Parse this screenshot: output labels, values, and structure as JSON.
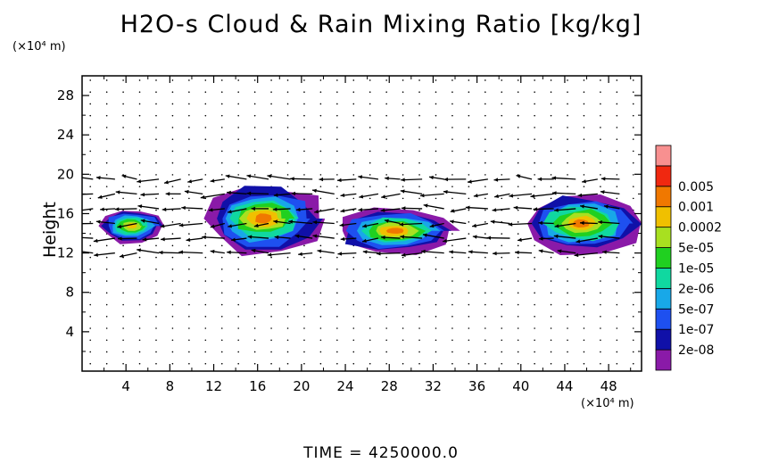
{
  "chart_data": {
    "type": "heatmap",
    "title": "H2O-s Cloud & Rain Mixing Ratio [kg/kg]",
    "ylabel": "Height",
    "x_unit": "(×10⁴ m)",
    "y_unit": "(×10⁴ m)",
    "footer": "TIME = 4250000.0",
    "xlim": [
      0,
      51
    ],
    "ylim": [
      0,
      30
    ],
    "x_ticks": [
      4,
      8,
      12,
      16,
      20,
      24,
      28,
      32,
      36,
      40,
      44,
      48
    ],
    "y_ticks": [
      4,
      8,
      12,
      16,
      20,
      24,
      28
    ],
    "colorbar": {
      "levels": [
        "2e-08",
        "1e-07",
        "5e-07",
        "2e-06",
        "1e-05",
        "5e-05",
        "0.0002",
        "0.001",
        "0.005"
      ],
      "colors": [
        "#8a1aa8",
        "#1010a8",
        "#1e50f0",
        "#18a8e8",
        "#10d8a0",
        "#20d020",
        "#a8e020",
        "#f0c000",
        "#f07800",
        "#f02810",
        "#f89090"
      ]
    },
    "cloud_regions": [
      {
        "x": [
          1.5,
          7.5
        ],
        "y": [
          13,
          16.5
        ],
        "level": "5e-05"
      },
      {
        "x": [
          11,
          22
        ],
        "y": [
          12,
          19
        ],
        "level": "0.0002"
      },
      {
        "x": [
          23,
          34
        ],
        "y": [
          12,
          16.5
        ],
        "level": "0.0002"
      },
      {
        "x": [
          40,
          51
        ],
        "y": [
          12,
          18
        ],
        "level": "0.0002"
      }
    ]
  }
}
